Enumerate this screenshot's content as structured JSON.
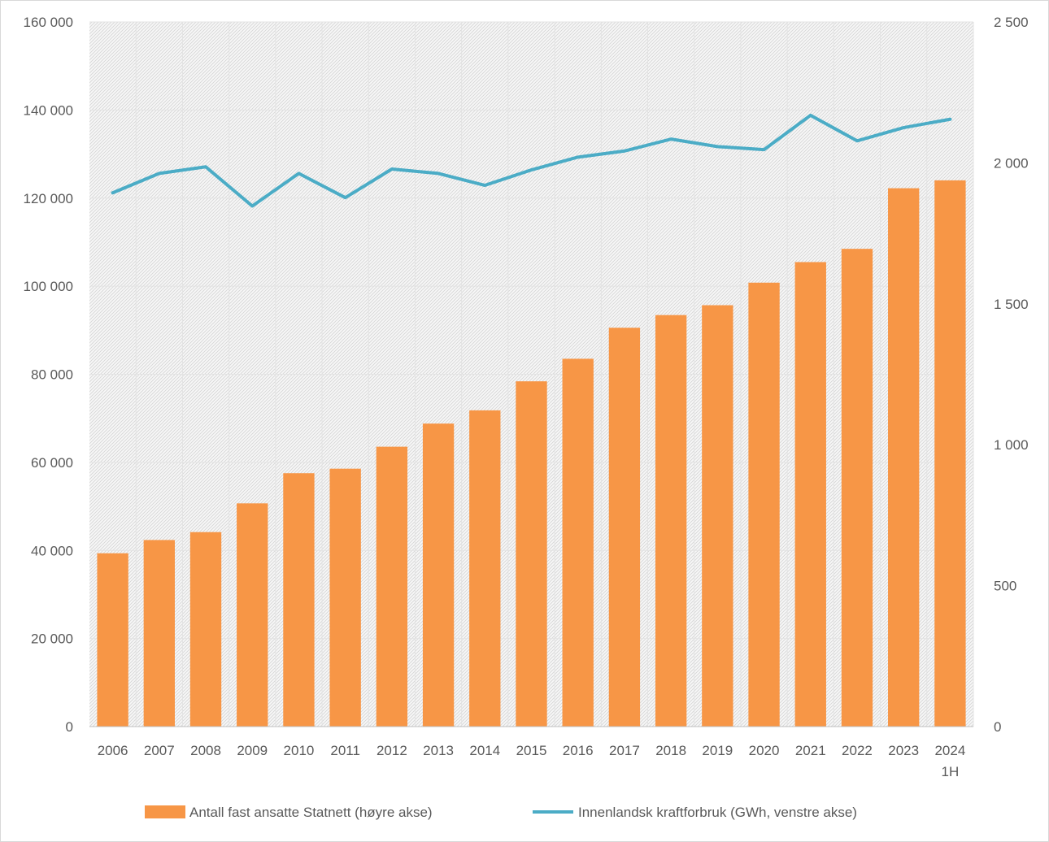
{
  "chart_data": {
    "type": "bar",
    "categories": [
      "2006",
      "2007",
      "2008",
      "2009",
      "2010",
      "2011",
      "2012",
      "2013",
      "2014",
      "2015",
      "2016",
      "2017",
      "2018",
      "2019",
      "2020",
      "2021",
      "2022",
      "2023",
      "2024"
    ],
    "category_sublabels": [
      "",
      "",
      "",
      "",
      "",
      "",
      "",
      "",
      "",
      "",
      "",
      "",
      "",
      "",
      "",
      "",
      "",
      "",
      "1H"
    ],
    "left_axis": {
      "ylim": [
        0,
        160000
      ],
      "ticks": [
        0,
        20000,
        40000,
        60000,
        80000,
        100000,
        120000,
        140000,
        160000
      ],
      "tick_labels": [
        "0",
        "20 000",
        "40 000",
        "60 000",
        "80 000",
        "100 000",
        "120 000",
        "140 000",
        "160 000"
      ]
    },
    "right_axis": {
      "ylim": [
        0,
        2500
      ],
      "ticks": [
        0,
        500,
        1000,
        1500,
        2000,
        2500
      ],
      "tick_labels": [
        "0",
        "500",
        "1 000",
        "1 500",
        "2 000",
        "2 500"
      ]
    },
    "series": [
      {
        "name": "Antall fast ansatte Statnett (høyre akse)",
        "type": "bar",
        "axis": "right",
        "color": "#F79646",
        "values": [
          615,
          662,
          690,
          792,
          899,
          915,
          993,
          1075,
          1122,
          1225,
          1305,
          1415,
          1460,
          1495,
          1575,
          1648,
          1695,
          1910,
          1938
        ]
      },
      {
        "name": "Innenlandsk kraftforbruk (GWh, venstre akse)",
        "type": "line",
        "axis": "left",
        "color": "#4BACC6",
        "values": [
          121200,
          125600,
          127100,
          118200,
          125600,
          120100,
          126600,
          125600,
          122900,
          126400,
          129300,
          130700,
          133400,
          131700,
          131000,
          138800,
          133000,
          136000,
          137900
        ]
      }
    ],
    "grid": true,
    "legend_position": "bottom"
  }
}
